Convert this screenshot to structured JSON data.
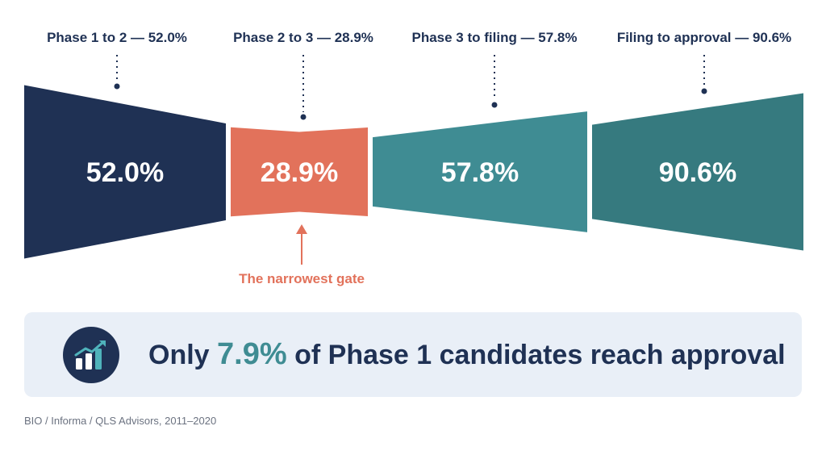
{
  "chart_data": {
    "type": "funnel",
    "categories": [
      "Phase 1 to 2",
      "Phase 2 to 3",
      "Phase 3 to filing",
      "Filing to approval"
    ],
    "labels": [
      "Phase 1 to 2 — 52.0%",
      "Phase 2 to 3 — 28.9%",
      "Phase 3 to filing — 57.8%",
      "Filing to approval — 90.6%"
    ],
    "values": [
      52.0,
      28.9,
      57.8,
      90.6
    ],
    "value_labels": [
      "52.0%",
      "28.9%",
      "57.8%",
      "90.6%"
    ],
    "unit": "%",
    "colors": [
      "#1f3154",
      "#e2725b",
      "#3f8c93",
      "#367a7f"
    ],
    "annotation": {
      "target": "Phase 2 to 3",
      "text": "The narrowest gate"
    }
  },
  "summary": {
    "prefix": "Only",
    "highlight": "7.9%",
    "suffix": "of Phase 1 candidates reach approval",
    "icon": "growth-chart-icon"
  },
  "source": "BIO / Informa / QLS Advisors, 2011–2020"
}
